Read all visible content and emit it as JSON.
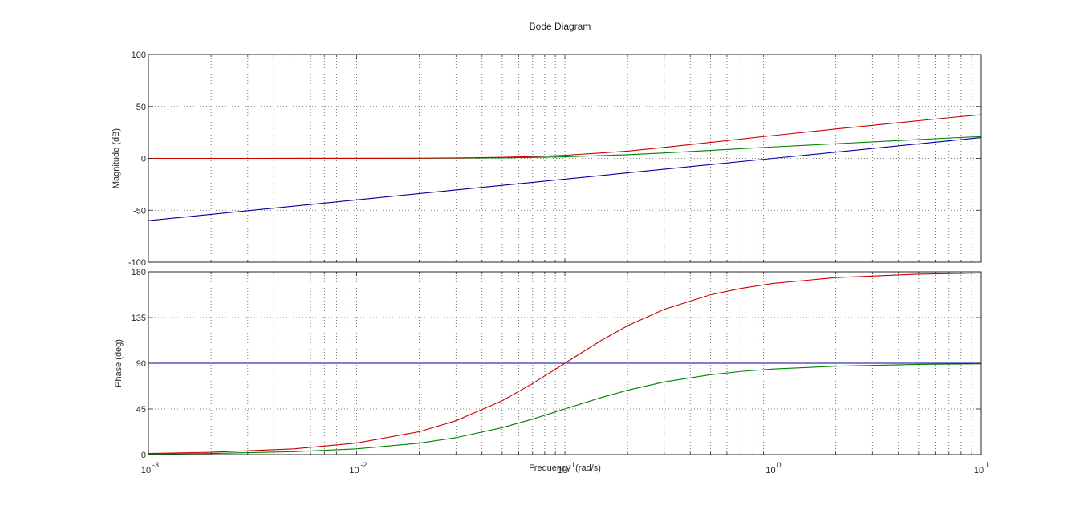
{
  "chart_data": {
    "type": "line",
    "title": "Bode Diagram",
    "xlabel": "Frequency  (rad/s)",
    "x_scale": "log",
    "xlim": [
      0.001,
      10
    ],
    "x_ticks": [
      {
        "value": 0.001,
        "base": "10",
        "exp": "-3"
      },
      {
        "value": 0.01,
        "base": "10",
        "exp": "-2"
      },
      {
        "value": 0.1,
        "base": "10",
        "exp": "-1"
      },
      {
        "value": 1,
        "base": "10",
        "exp": "0"
      },
      {
        "value": 10,
        "base": "10",
        "exp": "1"
      }
    ],
    "grid": true,
    "legend": "none",
    "colors": {
      "red": "#cc0000",
      "green": "#008000",
      "blue": "#0000aa",
      "grid": "#555555",
      "axes": "#262626"
    },
    "subplots": [
      {
        "id": "magnitude",
        "ylabel": "Magnitude (dB)",
        "ylim": [
          -100,
          100
        ],
        "y_ticks": [
          -100,
          -50,
          0,
          50,
          100
        ],
        "series": [
          {
            "color": "red",
            "x": [
              0.001,
              0.003,
              0.01,
              0.02,
              0.03,
              0.05,
              0.07,
              0.1,
              0.15,
              0.2,
              0.3,
              0.5,
              0.7,
              1,
              1.5,
              2,
              3,
              5,
              7,
              10
            ],
            "y": [
              0.0,
              0.0,
              0.04,
              0.2,
              0.4,
              1.0,
              1.8,
              3.0,
              5.3,
              7.0,
              10.6,
              15.4,
              18.6,
              22.0,
              25.7,
              28.3,
              31.8,
              36.3,
              39.2,
              42.0
            ]
          },
          {
            "color": "green",
            "x": [
              0.001,
              0.003,
              0.01,
              0.02,
              0.03,
              0.05,
              0.07,
              0.1,
              0.15,
              0.2,
              0.3,
              0.5,
              0.7,
              1,
              1.5,
              2,
              3,
              5,
              7,
              10
            ],
            "y": [
              0.0,
              0.0,
              0.02,
              0.1,
              0.2,
              0.5,
              0.9,
              1.5,
              2.7,
              3.5,
              5.3,
              7.7,
              9.3,
              11.0,
              12.8,
              14.1,
              15.9,
              18.1,
              19.6,
              21.0
            ]
          },
          {
            "color": "blue",
            "x": [
              0.001,
              0.01,
              0.1,
              1,
              10
            ],
            "y": [
              -60,
              -40,
              -20,
              0,
              20
            ]
          }
        ]
      },
      {
        "id": "phase",
        "ylabel": "Phase (deg)",
        "ylim": [
          0,
          180
        ],
        "y_ticks": [
          0,
          45,
          90,
          135,
          180
        ],
        "series": [
          {
            "color": "red",
            "x": [
              0.001,
              0.002,
              0.005,
              0.01,
              0.02,
              0.03,
              0.05,
              0.07,
              0.1,
              0.15,
              0.2,
              0.3,
              0.5,
              0.7,
              1,
              2,
              5,
              10
            ],
            "y": [
              1.1,
              2.3,
              5.7,
              11.4,
              22.6,
              33.4,
              53.1,
              70.0,
              90.0,
              112.6,
              126.9,
              143.1,
              157.4,
              163.7,
              168.6,
              174.3,
              177.7,
              178.9
            ]
          },
          {
            "color": "green",
            "x": [
              0.001,
              0.002,
              0.005,
              0.01,
              0.02,
              0.03,
              0.05,
              0.07,
              0.1,
              0.15,
              0.2,
              0.3,
              0.5,
              0.7,
              1,
              2,
              5,
              10
            ],
            "y": [
              0.6,
              1.1,
              2.9,
              5.7,
              11.3,
              16.7,
              26.6,
              35.0,
              45.0,
              56.3,
              63.4,
              71.6,
              78.7,
              81.9,
              84.3,
              87.1,
              88.9,
              89.4
            ]
          },
          {
            "color": "blue",
            "x": [
              0.001,
              10
            ],
            "y": [
              90,
              90
            ]
          }
        ]
      }
    ]
  }
}
